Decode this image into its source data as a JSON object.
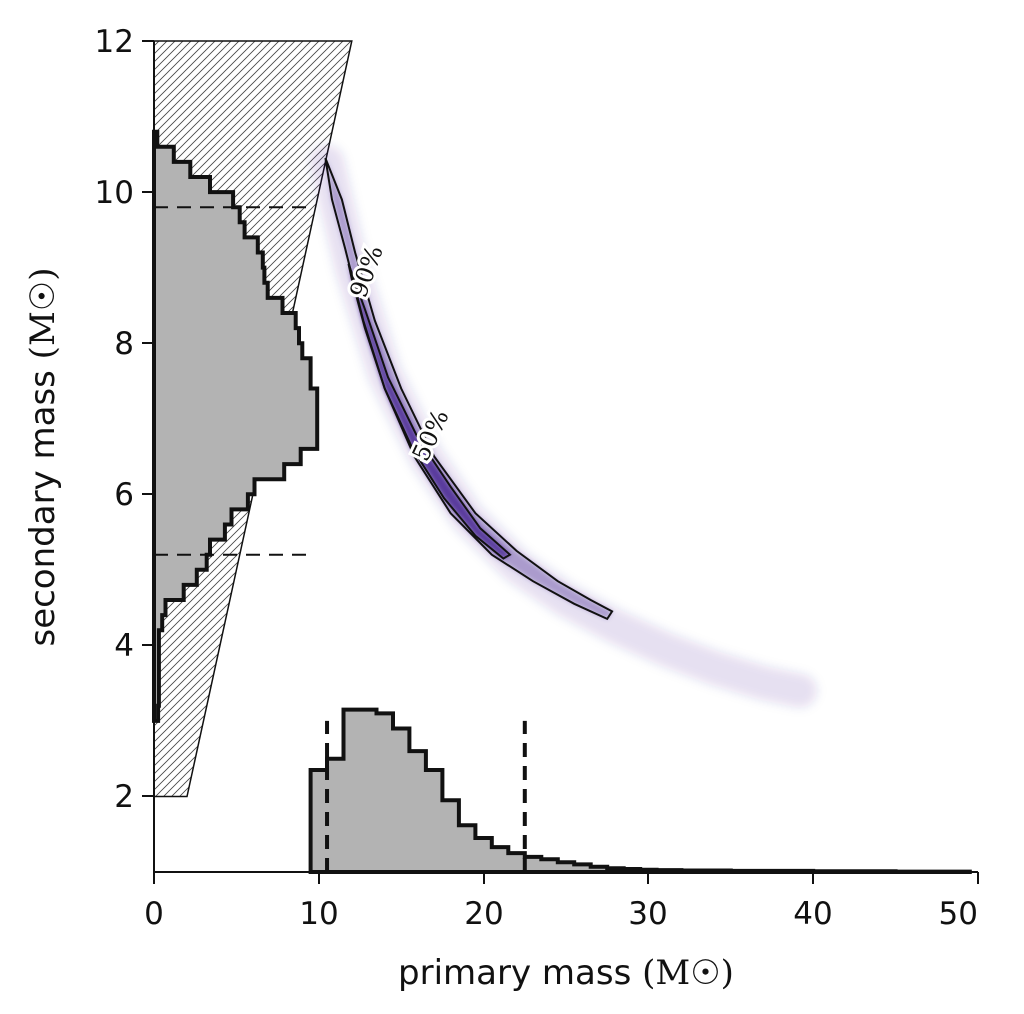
{
  "chart_data": {
    "type": "scatter",
    "title": "",
    "xlabel": "primary mass",
    "ylabel": "secondary mass",
    "unit": "(M☉)",
    "xlim": [
      0,
      50
    ],
    "ylim": [
      1,
      12
    ],
    "xticks": [
      "0",
      "10",
      "20",
      "30",
      "40",
      "50"
    ],
    "yticks": [
      "2",
      "4",
      "6",
      "8",
      "10",
      "12"
    ],
    "grid": false,
    "contour_labels": [
      "90%",
      "50%"
    ],
    "colors": {
      "density": "#3d1a8c",
      "histogram_fill": "#b3b3b3",
      "hatch_region": "#d9d9d9"
    },
    "constraint_region_vertices": [
      [
        0,
        12
      ],
      [
        12,
        12
      ],
      [
        2,
        2
      ],
      [
        0,
        2
      ]
    ],
    "contour_90": [
      [
        10.4,
        10.45
      ],
      [
        11.4,
        9.9
      ],
      [
        12.2,
        9.2
      ],
      [
        13.4,
        8.3
      ],
      [
        15.0,
        7.4
      ],
      [
        17.0,
        6.5
      ],
      [
        19.5,
        5.75
      ],
      [
        22.0,
        5.25
      ],
      [
        24.5,
        4.85
      ],
      [
        26.5,
        4.6
      ],
      [
        27.8,
        4.45
      ],
      [
        27.5,
        4.35
      ],
      [
        25.5,
        4.55
      ],
      [
        23.0,
        4.85
      ],
      [
        20.5,
        5.2
      ],
      [
        18.0,
        5.75
      ],
      [
        15.8,
        6.5
      ],
      [
        14.0,
        7.4
      ],
      [
        12.7,
        8.3
      ],
      [
        11.6,
        9.25
      ],
      [
        10.8,
        9.9
      ],
      [
        10.4,
        10.45
      ]
    ],
    "contour_50": [
      [
        11.8,
        9.05
      ],
      [
        12.8,
        8.45
      ],
      [
        14.2,
        7.55
      ],
      [
        16.0,
        6.75
      ],
      [
        18.0,
        6.1
      ],
      [
        19.8,
        5.55
      ],
      [
        21.6,
        5.2
      ],
      [
        21.2,
        5.15
      ],
      [
        19.5,
        5.45
      ],
      [
        17.6,
        5.95
      ],
      [
        15.7,
        6.6
      ],
      [
        14.0,
        7.4
      ],
      [
        12.8,
        8.2
      ],
      [
        12.0,
        8.85
      ],
      [
        11.8,
        9.05
      ]
    ],
    "density_ridge": [
      [
        10.5,
        10.4
      ],
      [
        12,
        9.0
      ],
      [
        14,
        7.6
      ],
      [
        16.5,
        6.5
      ],
      [
        19,
        5.7
      ],
      [
        22,
        5.05
      ],
      [
        25,
        4.6
      ],
      [
        28,
        4.25
      ],
      [
        31,
        3.95
      ],
      [
        34,
        3.7
      ],
      [
        37,
        3.5
      ],
      [
        39.2,
        3.4
      ]
    ],
    "primary_hist": {
      "bin_width": 1,
      "bins": [
        {
          "x": 9.5,
          "d": 2.35
        },
        {
          "x": 10.5,
          "d": 2.5
        },
        {
          "x": 11.5,
          "d": 3.15
        },
        {
          "x": 12.5,
          "d": 3.15
        },
        {
          "x": 13.5,
          "d": 3.1
        },
        {
          "x": 14.5,
          "d": 2.9
        },
        {
          "x": 15.5,
          "d": 2.6
        },
        {
          "x": 16.5,
          "d": 2.35
        },
        {
          "x": 17.5,
          "d": 1.95
        },
        {
          "x": 18.5,
          "d": 1.62
        },
        {
          "x": 19.5,
          "d": 1.45
        },
        {
          "x": 20.5,
          "d": 1.33
        },
        {
          "x": 21.5,
          "d": 1.25
        },
        {
          "x": 22.5,
          "d": 1.2
        },
        {
          "x": 23.5,
          "d": 1.17
        },
        {
          "x": 24.5,
          "d": 1.13
        },
        {
          "x": 25.5,
          "d": 1.1
        },
        {
          "x": 26.5,
          "d": 1.07
        },
        {
          "x": 27.5,
          "d": 1.05
        },
        {
          "x": 28.5,
          "d": 1.04
        },
        {
          "x": 29.5,
          "d": 1.03
        },
        {
          "x": 30.5,
          "d": 1.025
        },
        {
          "x": 32.0,
          "d": 1.02
        },
        {
          "x": 35.0,
          "d": 1.015
        },
        {
          "x": 40.0,
          "d": 1.01
        },
        {
          "x": 45.0,
          "d": 1.005
        }
      ],
      "end": 49.5,
      "interval": [
        10.5,
        22.5
      ]
    },
    "secondary_hist": {
      "bin_width": 0.2,
      "bins": [
        {
          "y": 3.0,
          "d": 0.25
        },
        {
          "y": 3.2,
          "d": 0.3
        },
        {
          "y": 3.4,
          "d": 0.3
        },
        {
          "y": 3.6,
          "d": 0.3
        },
        {
          "y": 3.8,
          "d": 0.3
        },
        {
          "y": 4.0,
          "d": 0.3
        },
        {
          "y": 4.2,
          "d": 0.5
        },
        {
          "y": 4.4,
          "d": 0.7
        },
        {
          "y": 4.6,
          "d": 1.8
        },
        {
          "y": 4.8,
          "d": 2.6
        },
        {
          "y": 5.0,
          "d": 3.2
        },
        {
          "y": 5.2,
          "d": 3.4
        },
        {
          "y": 5.4,
          "d": 4.3
        },
        {
          "y": 5.6,
          "d": 4.7
        },
        {
          "y": 5.8,
          "d": 5.7
        },
        {
          "y": 6.0,
          "d": 6.1
        },
        {
          "y": 6.2,
          "d": 7.9
        },
        {
          "y": 6.4,
          "d": 8.9
        },
        {
          "y": 6.6,
          "d": 9.9
        },
        {
          "y": 6.8,
          "d": 9.9
        },
        {
          "y": 7.0,
          "d": 9.9
        },
        {
          "y": 7.2,
          "d": 9.9
        },
        {
          "y": 7.4,
          "d": 9.5
        },
        {
          "y": 7.6,
          "d": 9.5
        },
        {
          "y": 7.8,
          "d": 9.0
        },
        {
          "y": 8.0,
          "d": 8.8
        },
        {
          "y": 8.2,
          "d": 8.6
        },
        {
          "y": 8.4,
          "d": 7.8
        },
        {
          "y": 8.6,
          "d": 6.9
        },
        {
          "y": 8.8,
          "d": 6.7
        },
        {
          "y": 9.0,
          "d": 6.6
        },
        {
          "y": 9.2,
          "d": 6.3
        },
        {
          "y": 9.4,
          "d": 5.5
        },
        {
          "y": 9.6,
          "d": 5.2
        },
        {
          "y": 9.8,
          "d": 4.8
        },
        {
          "y": 10.0,
          "d": 3.4
        },
        {
          "y": 10.2,
          "d": 2.2
        },
        {
          "y": 10.4,
          "d": 1.2
        },
        {
          "y": 10.6,
          "d": 0.2
        }
      ],
      "interval": [
        5.2,
        9.8
      ]
    }
  }
}
